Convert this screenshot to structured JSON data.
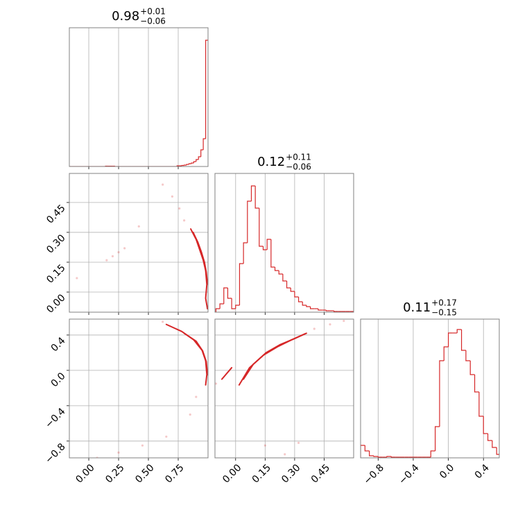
{
  "chart_data": [
    {
      "type": "histogram",
      "title": {
        "main": "0.98",
        "upper": "+0.01",
        "lower": "−0.06"
      },
      "color": "#d62728",
      "grid": true,
      "xlim": [
        -0.163,
        1.0
      ],
      "ylim": [
        0,
        200
      ],
      "xticks": [
        0,
        0.25,
        0.5,
        0.75
      ],
      "bins": [
        -0.16,
        -0.14,
        -0.12,
        -0.1,
        -0.08,
        -0.06,
        -0.04,
        -0.02,
        0,
        0.02,
        0.04,
        0.06,
        0.08,
        0.1,
        0.12,
        0.14,
        0.16,
        0.18,
        0.2,
        0.22,
        0.24,
        0.26,
        0.28,
        0.3,
        0.32,
        0.34,
        0.36,
        0.38,
        0.4,
        0.42,
        0.44,
        0.46,
        0.48,
        0.5,
        0.52,
        0.54,
        0.56,
        0.58,
        0.6,
        0.62,
        0.64,
        0.66,
        0.68,
        0.7,
        0.72,
        0.74,
        0.76,
        0.78,
        0.8,
        0.82,
        0.84,
        0.86,
        0.88,
        0.9,
        0.92,
        0.94,
        0.96,
        0.98,
        1.0
      ],
      "counts": [
        0,
        0,
        0,
        0,
        0,
        0,
        0,
        0,
        0,
        0,
        0,
        0,
        0,
        0,
        0,
        0.5,
        0.5,
        0.5,
        0.5,
        0,
        0,
        0,
        0,
        0,
        0,
        0,
        0,
        0,
        0,
        0,
        0,
        0,
        0,
        0,
        0,
        0,
        0,
        0,
        0,
        0,
        0,
        0,
        0,
        0,
        0,
        1,
        1,
        1.5,
        2,
        3,
        4,
        5,
        7,
        10,
        14,
        24,
        40,
        182
      ]
    },
    {
      "type": "contour",
      "color": "#d62728",
      "grid": true,
      "xlim": [
        -0.163,
        1.0
      ],
      "ylim": [
        -0.101,
        0.596
      ],
      "xticks": [
        0,
        0.25,
        0.5,
        0.75
      ],
      "yticks": [
        {
          "value": 0,
          "label": "0.00"
        },
        {
          "value": 0.15,
          "label": "0.15"
        },
        {
          "value": 0.3,
          "label": "0.30"
        },
        {
          "value": 0.45,
          "label": "0.45"
        }
      ],
      "contours": [
        {
          "x": [
            0.855,
            0.9,
            0.93,
            0.96,
            0.98,
            0.99,
            0.98,
            0.995
          ],
          "y": [
            0.317,
            0.265,
            0.213,
            0.16,
            0.108,
            0.038,
            -0.031,
            -0.084
          ]
        },
        {
          "x": [
            0.875,
            0.915,
            0.945,
            0.97,
            0.985,
            0.995
          ],
          "y": [
            0.3,
            0.25,
            0.2,
            0.15,
            0.1,
            0.04
          ]
        }
      ],
      "points": {
        "x": [
          0.62,
          0.7,
          0.76,
          0.8,
          0.15,
          0.2,
          0.25,
          0.3,
          -0.1,
          0.42
        ],
        "y": [
          0.54,
          0.48,
          0.42,
          0.36,
          0.16,
          0.18,
          0.2,
          0.22,
          0.07,
          0.33
        ]
      }
    },
    {
      "type": "histogram",
      "title": {
        "main": "0.12",
        "upper": "+0.11",
        "lower": "−0.06"
      },
      "color": "#d62728",
      "grid": true,
      "xlim": [
        -0.105,
        0.6
      ],
      "ylim": [
        0,
        200
      ],
      "xticks": [
        0,
        0.15,
        0.3,
        0.45
      ],
      "bins": [
        -0.1,
        -0.08,
        -0.06,
        -0.04,
        -0.02,
        0,
        0.02,
        0.04,
        0.06,
        0.08,
        0.1,
        0.12,
        0.14,
        0.16,
        0.18,
        0.2,
        0.22,
        0.24,
        0.26,
        0.28,
        0.3,
        0.32,
        0.34,
        0.36,
        0.38,
        0.4,
        0.42,
        0.44,
        0.46,
        0.48,
        0.5,
        0.52,
        0.54,
        0.56,
        0.58,
        0.6
      ],
      "counts": [
        5,
        12,
        35,
        20,
        5,
        10,
        70,
        100,
        160,
        182,
        150,
        95,
        90,
        105,
        65,
        60,
        55,
        45,
        35,
        30,
        22,
        15,
        10,
        8,
        5,
        5,
        3,
        3,
        2,
        2,
        1,
        1,
        1,
        1,
        1
      ]
    },
    {
      "type": "contour",
      "color": "#d62728",
      "grid": true,
      "xlim": [
        -0.163,
        1.0
      ],
      "ylim": [
        -0.99,
        0.58
      ],
      "xticks": [
        {
          "value": 0,
          "label": "0.00"
        },
        {
          "value": 0.25,
          "label": "0.25"
        },
        {
          "value": 0.5,
          "label": "0.50"
        },
        {
          "value": 0.75,
          "label": "0.75"
        }
      ],
      "yticks": [
        {
          "value": -0.8,
          "label": "−0.8"
        },
        {
          "value": -0.4,
          "label": "−0.4"
        },
        {
          "value": 0,
          "label": "0.0"
        },
        {
          "value": 0.4,
          "label": "0.4"
        }
      ],
      "contours": [
        {
          "x": [
            0.65,
            0.78,
            0.88,
            0.95,
            0.98,
            0.99,
            0.98
          ],
          "y": [
            0.52,
            0.44,
            0.345,
            0.227,
            0.11,
            -0.047,
            -0.165
          ]
        },
        {
          "x": [
            0.8,
            0.9,
            0.955,
            0.985,
            0.995
          ],
          "y": [
            0.42,
            0.33,
            0.22,
            0.1,
            -0.05
          ]
        }
      ],
      "points": {
        "x": [
          0.07,
          0.25,
          0.45,
          0.65,
          0.9,
          0.85,
          0.62
        ],
        "y": [
          -0.99,
          -0.93,
          -0.85,
          -0.75,
          -0.3,
          -0.5,
          0.55
        ]
      }
    },
    {
      "type": "contour",
      "color": "#d62728",
      "grid": true,
      "xlim": [
        -0.105,
        0.6
      ],
      "ylim": [
        -0.99,
        0.58
      ],
      "xticks": [
        {
          "value": 0,
          "label": "0.00"
        },
        {
          "value": 0.15,
          "label": "0.15"
        },
        {
          "value": 0.3,
          "label": "0.30"
        },
        {
          "value": 0.45,
          "label": "0.45"
        }
      ],
      "yticks": [
        -0.8,
        -0.4,
        0,
        0.4
      ],
      "contours": [
        {
          "x": [
            0.018,
            0.071,
            0.142,
            0.213,
            0.284,
            0.355
          ],
          "y": [
            -0.165,
            0.031,
            0.173,
            0.267,
            0.345,
            0.416
          ]
        },
        {
          "x": [
            0.04,
            0.09,
            0.155,
            0.225,
            0.3,
            0.36
          ],
          "y": [
            -0.1,
            0.07,
            0.2,
            0.29,
            0.36,
            0.42
          ]
        },
        {
          "x": [
            -0.07,
            -0.02
          ],
          "y": [
            -0.1,
            0.03
          ]
        }
      ],
      "points": {
        "x": [
          0.4,
          0.48,
          0.55,
          0.15,
          0.25,
          0.32,
          -0.1
        ],
        "y": [
          0.47,
          0.52,
          0.56,
          -0.85,
          -0.95,
          -0.82,
          -0.15
        ]
      }
    },
    {
      "type": "histogram",
      "title": {
        "main": "0.11",
        "upper": "+0.17",
        "lower": "−0.15"
      },
      "color": "#d62728",
      "grid": true,
      "xlim": [
        -1.0,
        0.58
      ],
      "ylim": [
        0,
        200
      ],
      "xticks": [
        {
          "value": -0.8,
          "label": "−0.8"
        },
        {
          "value": -0.4,
          "label": "−0.4"
        },
        {
          "value": 0,
          "label": "0.0"
        },
        {
          "value": 0.4,
          "label": "0.4"
        }
      ],
      "bins": [
        -1.0,
        -0.95,
        -0.9,
        -0.85,
        -0.8,
        -0.75,
        -0.7,
        -0.65,
        -0.6,
        -0.55,
        -0.5,
        -0.45,
        -0.4,
        -0.35,
        -0.3,
        -0.25,
        -0.2,
        -0.15,
        -0.1,
        -0.05,
        0,
        0.05,
        0.1,
        0.15,
        0.2,
        0.25,
        0.3,
        0.35,
        0.4,
        0.45,
        0.5,
        0.55,
        0.6
      ],
      "counts": [
        18,
        10,
        3,
        2,
        1,
        1,
        2,
        1,
        1,
        1,
        1,
        1,
        1,
        1,
        1,
        1,
        10,
        45,
        140,
        160,
        180,
        180,
        185,
        155,
        140,
        120,
        95,
        60,
        35,
        25,
        15,
        5
      ]
    }
  ]
}
